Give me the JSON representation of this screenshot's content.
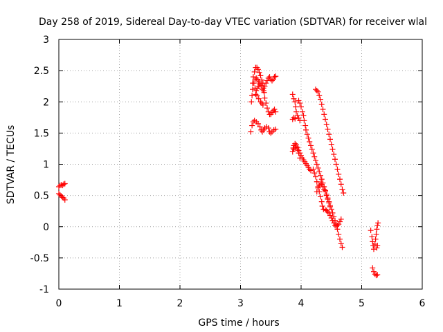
{
  "chart_data": {
    "type": "scatter",
    "title": "Day 258 of 2019, Sidereal Day-to-day VTEC variation (SDTVAR) for receiver wlal",
    "xlabel": "GPS time / hours",
    "ylabel": "SDTVAR / TECUs",
    "xlim": [
      0,
      6
    ],
    "ylim": [
      -1,
      3
    ],
    "xticks": [
      0,
      1,
      2,
      3,
      4,
      5,
      6
    ],
    "yticks": [
      -1,
      -0.5,
      0,
      0.5,
      1,
      1.5,
      2,
      2.5,
      3
    ],
    "xtick_labels": [
      "0",
      "1",
      "2",
      "3",
      "4",
      "5",
      "6"
    ],
    "ytick_labels": [
      "-1",
      "-0.5",
      "0",
      "0.5",
      "1",
      "1.5",
      "2",
      "2.5",
      "3"
    ],
    "grid": true,
    "marker": "+",
    "series": [
      {
        "name": "SDTVAR",
        "color": "#ff0000",
        "points": [
          [
            0.0,
            0.64
          ],
          [
            0.02,
            0.66
          ],
          [
            0.04,
            0.67
          ],
          [
            0.06,
            0.66
          ],
          [
            0.08,
            0.68
          ],
          [
            0.1,
            0.69
          ],
          [
            0.0,
            0.53
          ],
          [
            0.02,
            0.51
          ],
          [
            0.04,
            0.49
          ],
          [
            0.06,
            0.47
          ],
          [
            0.08,
            0.46
          ],
          [
            0.1,
            0.43
          ],
          [
            3.17,
            1.52
          ],
          [
            3.19,
            1.62
          ],
          [
            3.21,
            1.68
          ],
          [
            3.23,
            1.7
          ],
          [
            3.26,
            1.68
          ],
          [
            3.29,
            1.65
          ],
          [
            3.32,
            1.6
          ],
          [
            3.34,
            1.55
          ],
          [
            3.36,
            1.52
          ],
          [
            3.38,
            1.55
          ],
          [
            3.4,
            1.58
          ],
          [
            3.43,
            1.6
          ],
          [
            3.46,
            1.58
          ],
          [
            3.48,
            1.52
          ],
          [
            3.5,
            1.5
          ],
          [
            3.52,
            1.52
          ],
          [
            3.55,
            1.55
          ],
          [
            3.58,
            1.56
          ],
          [
            3.18,
            2.0
          ],
          [
            3.19,
            2.1
          ],
          [
            3.2,
            2.2
          ],
          [
            3.2,
            2.3
          ],
          [
            3.21,
            2.4
          ],
          [
            3.23,
            2.48
          ],
          [
            3.25,
            2.55
          ],
          [
            3.27,
            2.55
          ],
          [
            3.29,
            2.52
          ],
          [
            3.31,
            2.47
          ],
          [
            3.33,
            2.42
          ],
          [
            3.35,
            2.35
          ],
          [
            3.37,
            2.3
          ],
          [
            3.38,
            2.22
          ],
          [
            3.39,
            2.15
          ],
          [
            3.4,
            2.06
          ],
          [
            3.42,
            1.98
          ],
          [
            3.44,
            1.9
          ],
          [
            3.46,
            1.84
          ],
          [
            3.48,
            1.8
          ],
          [
            3.5,
            1.8
          ],
          [
            3.52,
            1.83
          ],
          [
            3.54,
            1.86
          ],
          [
            3.56,
            1.88
          ],
          [
            3.58,
            1.84
          ],
          [
            3.22,
            2.3
          ],
          [
            3.24,
            2.36
          ],
          [
            3.26,
            2.38
          ],
          [
            3.28,
            2.36
          ],
          [
            3.3,
            2.32
          ],
          [
            3.32,
            2.3
          ],
          [
            3.24,
            2.22
          ],
          [
            3.26,
            2.18
          ],
          [
            3.28,
            2.22
          ],
          [
            3.3,
            2.25
          ],
          [
            3.32,
            2.28
          ],
          [
            3.34,
            2.26
          ],
          [
            3.36,
            2.2
          ],
          [
            3.38,
            2.18
          ],
          [
            3.4,
            2.25
          ],
          [
            3.42,
            2.3
          ],
          [
            3.44,
            2.34
          ],
          [
            3.46,
            2.38
          ],
          [
            3.48,
            2.4
          ],
          [
            3.5,
            2.36
          ],
          [
            3.52,
            2.34
          ],
          [
            3.54,
            2.36
          ],
          [
            3.56,
            2.4
          ],
          [
            3.58,
            2.41
          ],
          [
            3.25,
            2.12
          ],
          [
            3.27,
            2.1
          ],
          [
            3.3,
            2.05
          ],
          [
            3.33,
            2.0
          ],
          [
            3.35,
            1.98
          ],
          [
            3.37,
            1.95
          ],
          [
            3.86,
            2.12
          ],
          [
            3.88,
            2.05
          ],
          [
            3.9,
            2.0
          ],
          [
            3.91,
            1.92
          ],
          [
            3.92,
            1.84
          ],
          [
            3.94,
            1.78
          ],
          [
            3.96,
            1.74
          ],
          [
            3.98,
            1.7
          ],
          [
            3.86,
            1.72
          ],
          [
            3.88,
            1.75
          ],
          [
            3.9,
            1.73
          ],
          [
            3.96,
            2.02
          ],
          [
            3.98,
            1.98
          ],
          [
            4.0,
            1.92
          ],
          [
            4.02,
            1.84
          ],
          [
            4.04,
            1.78
          ],
          [
            4.05,
            1.7
          ],
          [
            4.07,
            1.62
          ],
          [
            4.08,
            1.55
          ],
          [
            4.1,
            1.48
          ],
          [
            4.12,
            1.42
          ],
          [
            4.14,
            1.36
          ],
          [
            4.16,
            1.3
          ],
          [
            4.18,
            1.24
          ],
          [
            4.2,
            1.18
          ],
          [
            4.22,
            1.12
          ],
          [
            4.24,
            1.06
          ],
          [
            4.26,
            1.0
          ],
          [
            4.28,
            0.94
          ],
          [
            4.3,
            0.88
          ],
          [
            4.32,
            0.82
          ],
          [
            4.34,
            0.76
          ],
          [
            4.36,
            0.7
          ],
          [
            4.38,
            0.64
          ],
          [
            4.4,
            0.58
          ],
          [
            4.42,
            0.52
          ],
          [
            4.44,
            0.46
          ],
          [
            4.46,
            0.4
          ],
          [
            4.48,
            0.34
          ],
          [
            4.5,
            0.28
          ],
          [
            4.52,
            0.22
          ],
          [
            4.54,
            0.16
          ],
          [
            4.56,
            0.1
          ],
          [
            4.58,
            0.04
          ],
          [
            4.6,
            -0.04
          ],
          [
            4.62,
            -0.12
          ],
          [
            4.64,
            -0.2
          ],
          [
            4.66,
            -0.27
          ],
          [
            4.68,
            -0.33
          ],
          [
            3.86,
            1.2
          ],
          [
            3.87,
            1.26
          ],
          [
            3.88,
            1.3
          ],
          [
            3.9,
            1.33
          ],
          [
            3.92,
            1.31
          ],
          [
            3.94,
            1.27
          ],
          [
            3.96,
            1.22
          ],
          [
            3.98,
            1.18
          ],
          [
            4.0,
            1.14
          ],
          [
            4.02,
            1.1
          ],
          [
            4.04,
            1.07
          ],
          [
            4.06,
            1.04
          ],
          [
            4.08,
            1.01
          ],
          [
            4.1,
            0.98
          ],
          [
            4.12,
            0.95
          ],
          [
            4.14,
            0.92
          ],
          [
            4.16,
            0.9
          ],
          [
            3.88,
            1.24
          ],
          [
            3.9,
            1.26
          ],
          [
            3.92,
            1.28
          ],
          [
            3.94,
            1.24
          ],
          [
            3.96,
            1.18
          ],
          [
            3.98,
            1.1
          ],
          [
            4.2,
            0.92
          ],
          [
            4.22,
            0.86
          ],
          [
            4.24,
            0.8
          ],
          [
            4.26,
            0.72
          ],
          [
            4.28,
            0.64
          ],
          [
            4.3,
            0.56
          ],
          [
            4.32,
            0.48
          ],
          [
            4.34,
            0.4
          ],
          [
            4.35,
            0.33
          ],
          [
            4.37,
            0.28
          ],
          [
            4.4,
            0.27
          ],
          [
            4.42,
            0.26
          ],
          [
            4.44,
            0.24
          ],
          [
            4.46,
            0.22
          ],
          [
            4.48,
            0.18
          ],
          [
            4.5,
            0.14
          ],
          [
            4.52,
            0.1
          ],
          [
            4.54,
            0.06
          ],
          [
            4.56,
            0.02
          ],
          [
            4.58,
            0.01
          ],
          [
            4.6,
            0.02
          ],
          [
            4.62,
            0.04
          ],
          [
            4.64,
            0.08
          ],
          [
            4.66,
            0.12
          ],
          [
            4.26,
            0.56
          ],
          [
            4.28,
            0.62
          ],
          [
            4.3,
            0.66
          ],
          [
            4.32,
            0.7
          ],
          [
            4.34,
            0.68
          ],
          [
            4.36,
            0.64
          ],
          [
            4.38,
            0.6
          ],
          [
            4.4,
            0.56
          ],
          [
            4.42,
            0.5
          ],
          [
            4.44,
            0.44
          ],
          [
            4.46,
            0.38
          ],
          [
            4.48,
            0.32
          ],
          [
            4.24,
            2.2
          ],
          [
            4.26,
            2.18
          ],
          [
            4.28,
            2.16
          ],
          [
            4.3,
            2.1
          ],
          [
            4.32,
            2.04
          ],
          [
            4.34,
            1.96
          ],
          [
            4.36,
            1.88
          ],
          [
            4.38,
            1.8
          ],
          [
            4.4,
            1.72
          ],
          [
            4.42,
            1.64
          ],
          [
            4.44,
            1.56
          ],
          [
            4.46,
            1.48
          ],
          [
            4.48,
            1.4
          ],
          [
            4.5,
            1.32
          ],
          [
            4.52,
            1.24
          ],
          [
            4.54,
            1.16
          ],
          [
            4.56,
            1.08
          ],
          [
            4.58,
            1.0
          ],
          [
            4.6,
            0.92
          ],
          [
            4.62,
            0.84
          ],
          [
            4.64,
            0.76
          ],
          [
            4.66,
            0.68
          ],
          [
            4.68,
            0.6
          ],
          [
            4.7,
            0.54
          ],
          [
            5.15,
            -0.06
          ],
          [
            5.17,
            -0.16
          ],
          [
            5.18,
            -0.24
          ],
          [
            5.19,
            -0.3
          ],
          [
            5.2,
            -0.36
          ],
          [
            5.22,
            -0.28
          ],
          [
            5.23,
            -0.2
          ],
          [
            5.24,
            -0.12
          ],
          [
            5.25,
            -0.04
          ],
          [
            5.26,
            0.02
          ],
          [
            5.27,
            0.06
          ],
          [
            5.26,
            -0.3
          ],
          [
            5.25,
            -0.34
          ],
          [
            5.18,
            -0.66
          ],
          [
            5.2,
            -0.72
          ],
          [
            5.22,
            -0.76
          ],
          [
            5.24,
            -0.78
          ],
          [
            5.26,
            -0.77
          ]
        ]
      }
    ]
  }
}
